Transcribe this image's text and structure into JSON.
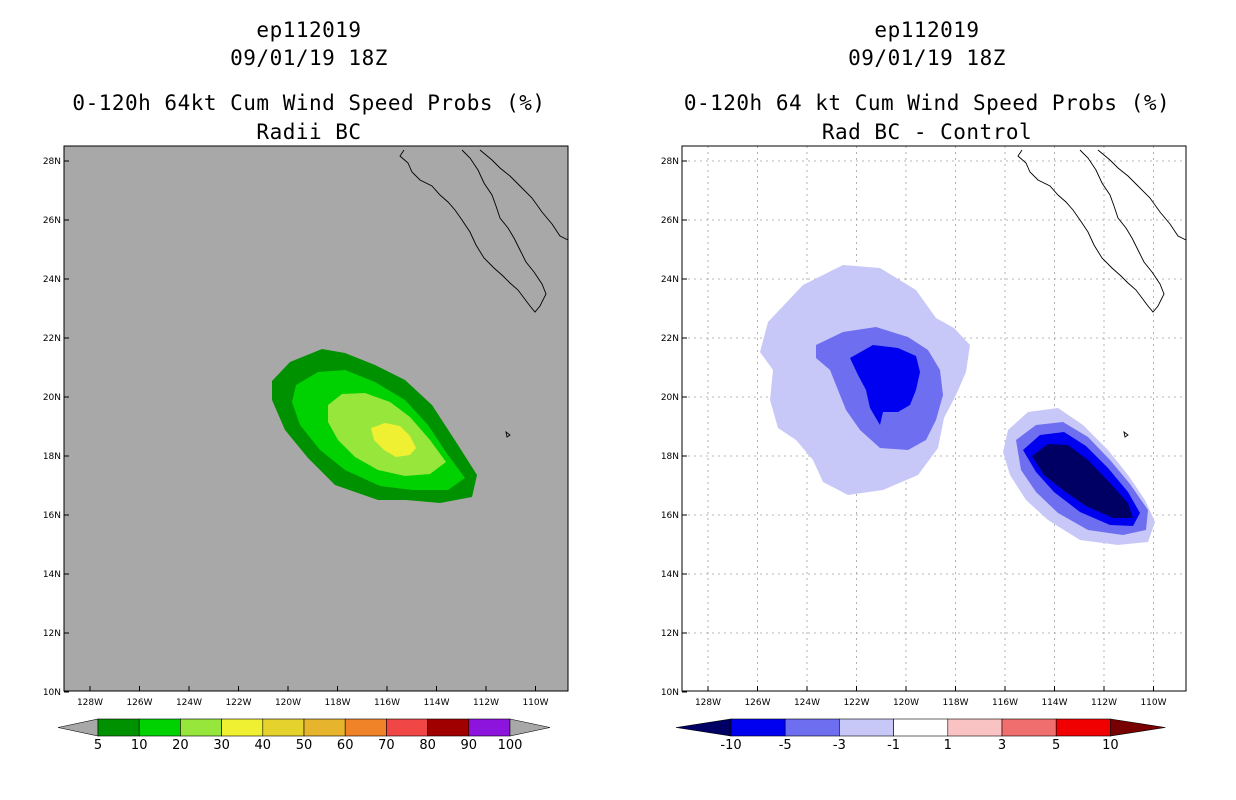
{
  "panels": [
    {
      "storm_id": "ep112019",
      "datetime": "09/01/19 18Z",
      "product": "0-120h 64kt Cum Wind Speed Probs (%)",
      "subtitle": "Radii BC",
      "background_color": "#a8a8a8",
      "colorbar": {
        "labels": [
          "5",
          "10",
          "20",
          "30",
          "40",
          "50",
          "60",
          "70",
          "80",
          "90",
          "100"
        ],
        "colors": [
          "#009100",
          "#00d100",
          "#96e63c",
          "#f0f032",
          "#e6d22d",
          "#e6b42d",
          "#f08228",
          "#f04646",
          "#a00000",
          "#8c14dc"
        ],
        "low_arrow_color": "#a8a8a8",
        "high_arrow_color": "#a8a8a8"
      }
    },
    {
      "storm_id": "ep112019",
      "datetime": "09/01/19 18Z",
      "product": "0-120h 64 kt Cum Wind Speed Probs (%)",
      "subtitle": "Rad BC - Control",
      "background_color": "#ffffff",
      "colorbar": {
        "labels": [
          "-10",
          "-5",
          "-3",
          "-1",
          "1",
          "3",
          "5",
          "10"
        ],
        "colors": [
          "#0000f0",
          "#6e6ef0",
          "#c8c8f8",
          "#ffffff",
          "#fac3c3",
          "#f06e6e",
          "#f00000"
        ],
        "low_arrow_color": "#000064",
        "high_arrow_color": "#780000"
      }
    }
  ],
  "axes": {
    "lat_labels": [
      "28N",
      "26N",
      "24N",
      "22N",
      "20N",
      "18N",
      "16N",
      "14N",
      "12N",
      "10N"
    ],
    "lon_labels": [
      "128W",
      "126W",
      "124W",
      "122W",
      "120W",
      "118W",
      "116W",
      "114W",
      "112W",
      "110W"
    ]
  }
}
